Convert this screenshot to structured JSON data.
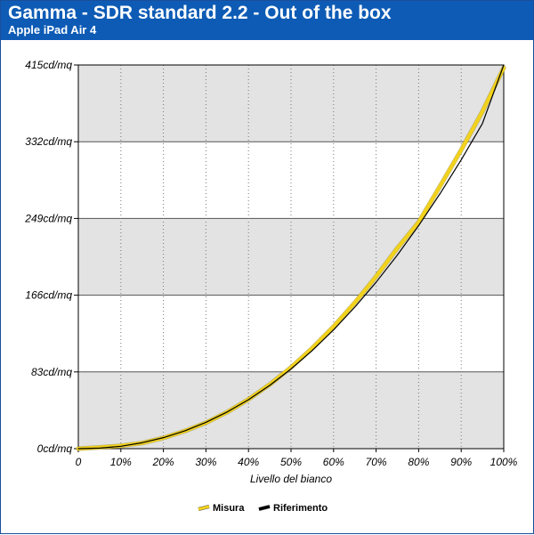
{
  "header": {
    "title": "Gamma - SDR standard 2.2 - Out of the box",
    "subtitle": "Apple iPad Air 4"
  },
  "colors": {
    "header_bg": "#0d5bb5",
    "band_gray": "#e3e3e3",
    "measured": "#f2d21b",
    "reference": "#000000"
  },
  "chart_data": {
    "type": "line",
    "title": "Gamma - SDR standard 2.2 - Out of the box",
    "subtitle": "Apple iPad Air 4",
    "xlabel": "Livello del bianco",
    "ylabel": "",
    "xlim": [
      0,
      100
    ],
    "ylim": [
      0,
      415
    ],
    "x_tick_labels": [
      "0",
      "10%",
      "20%",
      "30%",
      "40%",
      "50%",
      "60%",
      "70%",
      "80%",
      "90%",
      "100%"
    ],
    "y_tick_labels": [
      "0cd/mq",
      "83cd/mq",
      "166cd/mq",
      "249cd/mq",
      "332cd/mq",
      "415cd/mq"
    ],
    "grid": true,
    "legend_position": "bottom-center",
    "x": [
      0,
      5,
      10,
      15,
      20,
      25,
      30,
      35,
      40,
      45,
      50,
      55,
      60,
      65,
      70,
      75,
      80,
      85,
      90,
      95,
      100
    ],
    "series": [
      {
        "name": "Misura",
        "values": [
          0,
          1.3,
          3.1,
          6.1,
          11.6,
          19.0,
          28.0,
          39.5,
          53.3,
          69.4,
          87.9,
          108.8,
          132.1,
          157.9,
          186.2,
          216.9,
          245.0,
          283.7,
          323.1,
          364.8,
          412
        ]
      },
      {
        "name": "Riferimento",
        "values": [
          0,
          0.6,
          2.6,
          6.4,
          11.9,
          19.2,
          28.5,
          39.7,
          53.0,
          68.5,
          86.2,
          106.2,
          128.5,
          153.1,
          180.0,
          209.4,
          241.3,
          275.6,
          312.4,
          351.8,
          415
        ]
      }
    ]
  }
}
